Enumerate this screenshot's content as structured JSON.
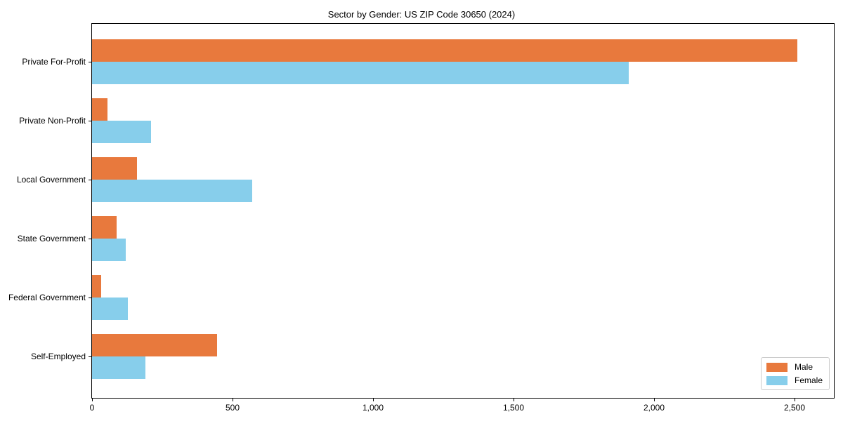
{
  "chart_data": {
    "type": "bar",
    "orientation": "horizontal",
    "title": "Sector by Gender: US ZIP Code 30650 (2024)",
    "categories": [
      "Private For-Profit",
      "Private Non-Profit",
      "Local Government",
      "State Government",
      "Federal Government",
      "Self-Employed"
    ],
    "series": [
      {
        "name": "Male",
        "color": "#E8793D",
        "values": [
          2510,
          55,
          160,
          88,
          32,
          445
        ]
      },
      {
        "name": "Female",
        "color": "#87CEEB",
        "values": [
          1910,
          210,
          570,
          120,
          128,
          190
        ]
      }
    ],
    "xlabel": "",
    "ylabel": "",
    "xlim": [
      0,
      2640
    ],
    "xticks": [
      {
        "value": 0,
        "label": "0"
      },
      {
        "value": 500,
        "label": "500"
      },
      {
        "value": 1000,
        "label": "1,000"
      },
      {
        "value": 1500,
        "label": "1,500"
      },
      {
        "value": 2000,
        "label": "2,000"
      },
      {
        "value": 2500,
        "label": "2,500"
      }
    ],
    "grid": false,
    "legend": {
      "position": "lower right",
      "entries": [
        "Male",
        "Female"
      ]
    },
    "colors": {
      "background": "#ffffff",
      "text": "#000000",
      "axis": "#000000",
      "legend_border": "#cccccc"
    }
  }
}
